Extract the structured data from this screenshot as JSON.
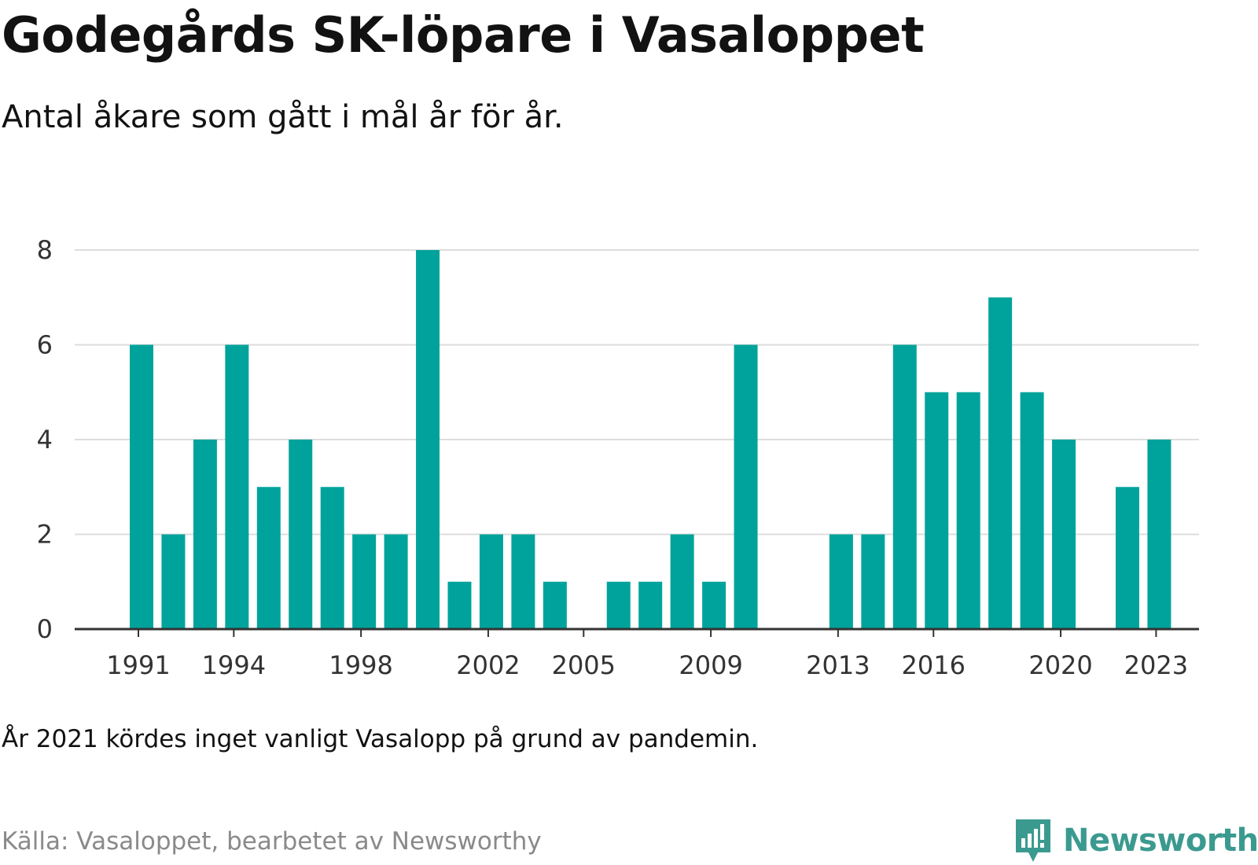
{
  "title": "Godegårds SK-löpare i Vasaloppet",
  "subtitle": "Antal åkare som gått i mål år för år.",
  "note": "År 2021 kördes inget vanligt Vasalopp på grund av pandemin.",
  "source": "Källa: Vasaloppet, bearbetet av Newsworthy",
  "brand": {
    "name": "Newsworthy",
    "icon": "newsworthy-logo-icon",
    "color": "#3b9a8f"
  },
  "chart_data": {
    "type": "bar",
    "title": "Godegårds SK-löpare i Vasaloppet",
    "subtitle": "Antal åkare som gått i mål år för år.",
    "color": "#00a39b",
    "x": [
      1991,
      1992,
      1993,
      1994,
      1995,
      1996,
      1997,
      1998,
      1999,
      2000,
      2001,
      2002,
      2003,
      2004,
      2005,
      2006,
      2007,
      2008,
      2009,
      2010,
      2011,
      2012,
      2013,
      2014,
      2015,
      2016,
      2017,
      2018,
      2019,
      2020,
      2021,
      2022,
      2023
    ],
    "values": [
      6,
      2,
      4,
      6,
      3,
      4,
      3,
      2,
      2,
      8,
      1,
      2,
      2,
      1,
      0,
      1,
      1,
      2,
      1,
      6,
      0,
      0,
      2,
      2,
      6,
      5,
      5,
      7,
      5,
      4,
      0,
      3,
      4
    ],
    "xticks": [
      1991,
      1994,
      1998,
      2002,
      2005,
      2009,
      2013,
      2016,
      2020,
      2023
    ],
    "yticks": [
      0,
      2,
      4,
      6,
      8
    ],
    "ylim": [
      0,
      8
    ],
    "grid": true,
    "legend": "none"
  }
}
